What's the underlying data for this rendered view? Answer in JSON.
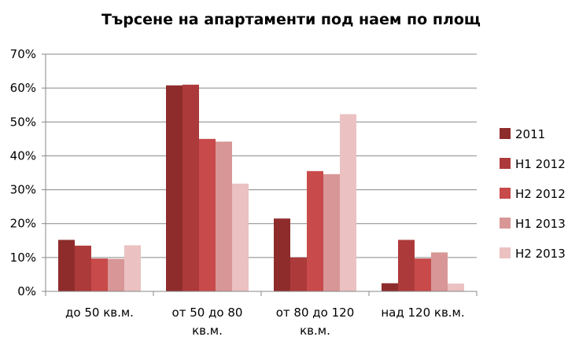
{
  "chart_data": {
    "type": "bar",
    "title": "Търсене на апартаменти под наем по площ",
    "xlabel": "",
    "ylabel": "",
    "categories": [
      [
        "до 50 кв.м."
      ],
      [
        "от 50 до 80",
        "кв.м."
      ],
      [
        "от 80 до 120",
        "кв.м."
      ],
      [
        "над 120 кв.м."
      ]
    ],
    "series": [
      {
        "name": "2011",
        "color": "#8e2c2c",
        "values": [
          15.2,
          60.8,
          21.5,
          2.4
        ]
      },
      {
        "name": "H1 2012",
        "color": "#ad3a3a",
        "values": [
          13.5,
          61.0,
          10.0,
          15.2
        ]
      },
      {
        "name": "H2 2012",
        "color": "#c84a4a",
        "values": [
          9.7,
          45.0,
          35.5,
          9.7
        ]
      },
      {
        "name": "H1 2013",
        "color": "#d89696",
        "values": [
          9.6,
          44.2,
          34.6,
          11.5
        ]
      },
      {
        "name": "H2 2013",
        "color": "#ebc1c1",
        "values": [
          13.6,
          31.8,
          52.3,
          2.3
        ]
      }
    ],
    "ylim": [
      0,
      70
    ],
    "yticks": [
      "0%",
      "10%",
      "20%",
      "30%",
      "40%",
      "50%",
      "60%",
      "70%"
    ],
    "grid": true,
    "legend_position": "right"
  }
}
